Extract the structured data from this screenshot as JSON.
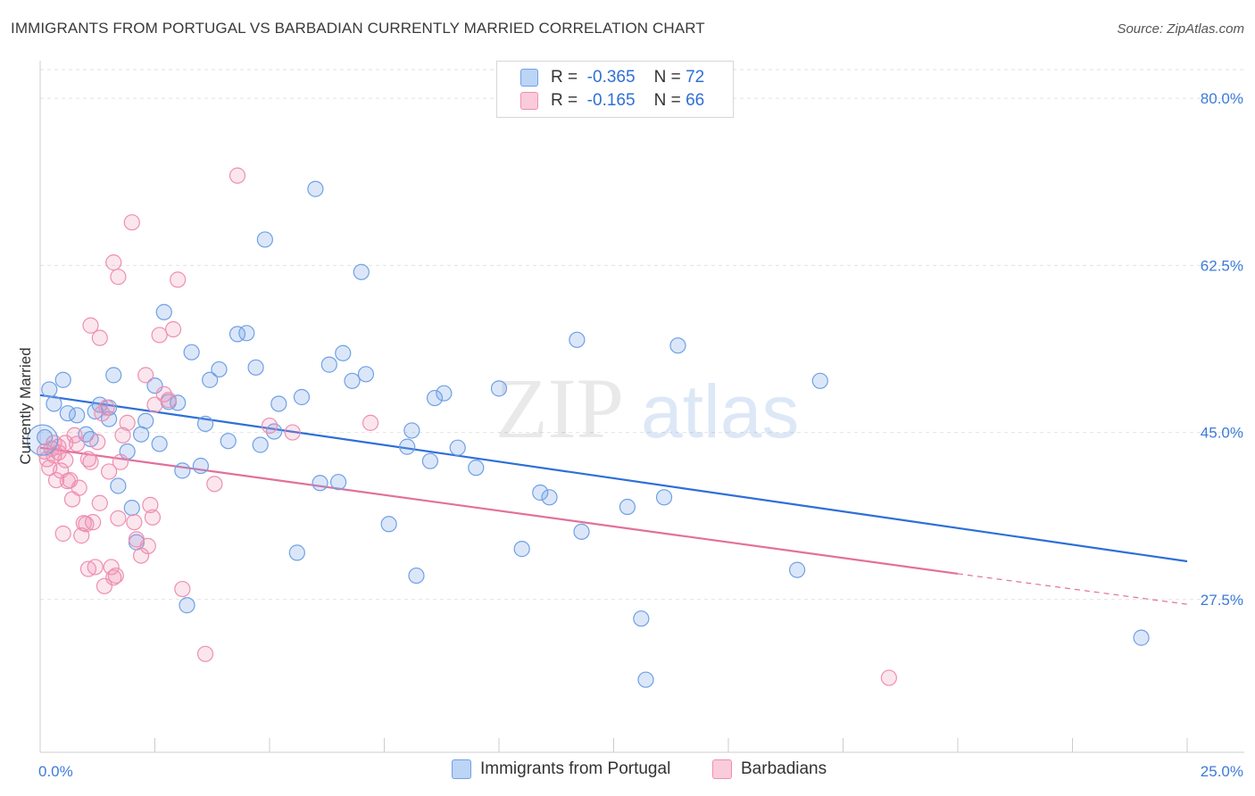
{
  "title": "IMMIGRANTS FROM PORTUGAL VS BARBADIAN CURRENTLY MARRIED CORRELATION CHART",
  "source": "Source: ZipAtlas.com",
  "watermark": {
    "zip": "ZIP",
    "atlas": "atlas"
  },
  "colors": {
    "blue": "#6fa0e6",
    "blue_line": "#2e6fd8",
    "pink": "#ef8fb0",
    "pink_line": "#e3709a",
    "tick": "#3d7bd9"
  },
  "legend": {
    "rows": [
      {
        "r_label": "R =",
        "r_value": "-0.365",
        "n_label": "N =",
        "n_value": "72"
      },
      {
        "r_label": "R =",
        "r_value": "-0.165",
        "n_label": "N =",
        "n_value": "66"
      }
    ]
  },
  "bottom_legend": [
    "Immigrants from Portugal",
    "Barbadians"
  ],
  "chart_data": {
    "type": "scatter",
    "xlabel": "",
    "ylabel": "Currently Married",
    "xlim": [
      0,
      25
    ],
    "ylim": [
      11.5,
      83
    ],
    "x_tick_labels": [
      "0.0%",
      "25.0%"
    ],
    "y_ticks": [
      27.5,
      45.0,
      62.5,
      80.0
    ],
    "y_tick_labels": [
      "27.5%",
      "45.0%",
      "62.5%",
      "80.0%"
    ],
    "grid": "horizontal dashed",
    "series": [
      {
        "name": "Immigrants from Portugal",
        "color": "#6fa0e6",
        "trend": {
          "x": [
            0,
            25
          ],
          "y": [
            48.9,
            31.5
          ],
          "dashed_from": null
        },
        "points": [
          [
            0.1,
            44.5
          ],
          [
            0.2,
            49.5
          ],
          [
            0.3,
            48.0
          ],
          [
            0.5,
            50.5
          ],
          [
            0.6,
            47.0
          ],
          [
            0.8,
            46.8
          ],
          [
            1.0,
            44.8
          ],
          [
            1.1,
            44.3
          ],
          [
            1.2,
            47.2
          ],
          [
            1.3,
            47.9
          ],
          [
            1.5,
            46.4
          ],
          [
            1.5,
            47.6
          ],
          [
            1.6,
            51.0
          ],
          [
            1.7,
            39.4
          ],
          [
            1.9,
            43.0
          ],
          [
            2.0,
            37.1
          ],
          [
            2.1,
            33.5
          ],
          [
            2.2,
            44.8
          ],
          [
            2.3,
            46.2
          ],
          [
            2.5,
            49.9
          ],
          [
            2.6,
            43.8
          ],
          [
            2.7,
            57.6
          ],
          [
            2.8,
            48.2
          ],
          [
            3.0,
            48.1
          ],
          [
            3.1,
            41.0
          ],
          [
            3.2,
            26.9
          ],
          [
            3.3,
            53.4
          ],
          [
            3.5,
            41.5
          ],
          [
            3.6,
            45.9
          ],
          [
            3.7,
            50.5
          ],
          [
            3.9,
            51.6
          ],
          [
            4.1,
            44.1
          ],
          [
            4.3,
            55.3
          ],
          [
            4.5,
            55.4
          ],
          [
            4.7,
            51.8
          ],
          [
            4.8,
            43.7
          ],
          [
            4.9,
            65.2
          ],
          [
            5.1,
            45.1
          ],
          [
            5.2,
            48.0
          ],
          [
            5.6,
            32.4
          ],
          [
            5.7,
            48.7
          ],
          [
            6.0,
            70.5
          ],
          [
            6.1,
            39.7
          ],
          [
            6.3,
            52.1
          ],
          [
            6.5,
            39.8
          ],
          [
            6.6,
            53.3
          ],
          [
            6.8,
            50.4
          ],
          [
            7.0,
            61.8
          ],
          [
            7.1,
            51.1
          ],
          [
            7.6,
            35.4
          ],
          [
            8.0,
            43.5
          ],
          [
            8.1,
            45.2
          ],
          [
            8.2,
            30.0
          ],
          [
            8.5,
            42.0
          ],
          [
            8.6,
            48.6
          ],
          [
            8.8,
            49.1
          ],
          [
            9.1,
            43.4
          ],
          [
            9.5,
            41.3
          ],
          [
            10.0,
            49.6
          ],
          [
            10.5,
            32.8
          ],
          [
            10.9,
            38.7
          ],
          [
            11.1,
            38.2
          ],
          [
            11.7,
            54.7
          ],
          [
            11.8,
            34.6
          ],
          [
            12.8,
            37.2
          ],
          [
            13.1,
            25.5
          ],
          [
            13.2,
            19.1
          ],
          [
            13.6,
            38.2
          ],
          [
            13.9,
            54.1
          ],
          [
            16.5,
            30.6
          ],
          [
            17.0,
            50.4
          ],
          [
            24.0,
            23.5
          ]
        ]
      },
      {
        "name": "Barbadians",
        "color": "#ef8fb0",
        "trend": {
          "x": [
            0,
            20,
            25
          ],
          "y": [
            43.4,
            30.2,
            27.0
          ],
          "dashed_from": 20
        },
        "points": [
          [
            0.1,
            43.0
          ],
          [
            0.15,
            42.2
          ],
          [
            0.2,
            41.3
          ],
          [
            0.25,
            43.3
          ],
          [
            0.3,
            42.6
          ],
          [
            0.35,
            40.0
          ],
          [
            0.4,
            43.5
          ],
          [
            0.45,
            41.0
          ],
          [
            0.5,
            34.4
          ],
          [
            0.55,
            42.1
          ],
          [
            0.6,
            39.9
          ],
          [
            0.7,
            38.0
          ],
          [
            0.75,
            44.7
          ],
          [
            0.8,
            43.8
          ],
          [
            0.85,
            39.2
          ],
          [
            0.9,
            34.2
          ],
          [
            1.0,
            35.4
          ],
          [
            1.05,
            42.2
          ],
          [
            1.1,
            41.9
          ],
          [
            1.15,
            35.6
          ],
          [
            1.2,
            30.9
          ],
          [
            1.3,
            37.6
          ],
          [
            1.35,
            47.0
          ],
          [
            1.4,
            28.9
          ],
          [
            1.5,
            40.9
          ],
          [
            1.55,
            30.9
          ],
          [
            1.6,
            29.8
          ],
          [
            1.65,
            30.0
          ],
          [
            1.7,
            36.0
          ],
          [
            1.75,
            41.9
          ],
          [
            1.8,
            44.7
          ],
          [
            1.9,
            46.0
          ],
          [
            2.0,
            67.0
          ],
          [
            2.05,
            35.6
          ],
          [
            2.1,
            33.8
          ],
          [
            2.2,
            32.1
          ],
          [
            2.3,
            51.0
          ],
          [
            2.35,
            33.1
          ],
          [
            2.4,
            37.4
          ],
          [
            2.45,
            36.1
          ],
          [
            2.5,
            47.9
          ],
          [
            2.6,
            55.2
          ],
          [
            2.7,
            49.0
          ],
          [
            2.8,
            48.4
          ],
          [
            2.9,
            55.8
          ],
          [
            3.0,
            61.0
          ],
          [
            3.1,
            28.6
          ],
          [
            3.6,
            21.8
          ],
          [
            3.8,
            39.6
          ],
          [
            4.3,
            71.9
          ],
          [
            5.0,
            45.7
          ],
          [
            5.5,
            45.0
          ],
          [
            7.2,
            46.0
          ],
          [
            1.6,
            62.8
          ],
          [
            1.7,
            61.3
          ],
          [
            1.1,
            56.2
          ],
          [
            1.3,
            54.9
          ],
          [
            0.95,
            35.5
          ],
          [
            0.65,
            40.0
          ],
          [
            0.55,
            43.9
          ],
          [
            1.25,
            44.0
          ],
          [
            1.45,
            47.6
          ],
          [
            1.05,
            30.7
          ],
          [
            0.4,
            42.9
          ],
          [
            0.3,
            43.9
          ],
          [
            18.5,
            19.3
          ]
        ]
      }
    ]
  }
}
